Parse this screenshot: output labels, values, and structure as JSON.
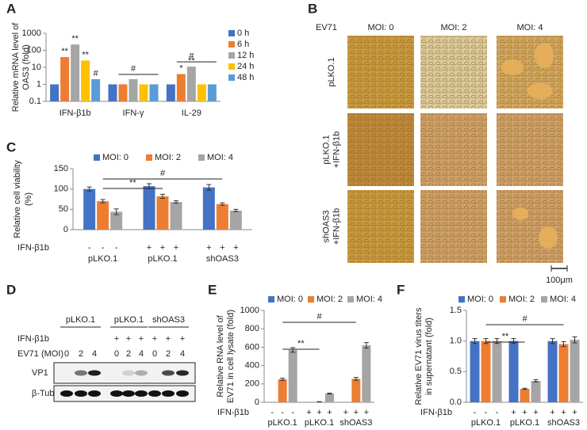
{
  "chart_data": [
    {
      "panel": "A",
      "type": "bar",
      "log_scale": true,
      "ylabel": [
        "Relative mRNA level of",
        "OAS3 (fold)"
      ],
      "categories": [
        "IFN-β1b",
        "IFN-γ",
        "IL-29"
      ],
      "series": [
        {
          "name": "0 h",
          "color": "#4472c4",
          "values": [
            1,
            1,
            1
          ]
        },
        {
          "name": "6 h",
          "color": "#ed7d31",
          "values": [
            40,
            1,
            4
          ],
          "value_annotations": [
            "**",
            null,
            "*"
          ]
        },
        {
          "name": "12 h",
          "color": "#a5a5a5",
          "values": [
            220,
            2,
            11
          ],
          "value_annotations": [
            "**",
            null,
            "**"
          ]
        },
        {
          "name": "24 h",
          "color": "#ffc000",
          "values": [
            25,
            1,
            1
          ],
          "value_annotations": [
            "**",
            null,
            null
          ]
        },
        {
          "name": "48 h",
          "color": "#5b9bd5",
          "values": [
            2,
            1,
            1
          ],
          "value_annotations": [
            "#",
            null,
            null
          ]
        }
      ],
      "group_annotations": [
        null,
        "#",
        "#"
      ],
      "ylim": [
        0.1,
        1000
      ],
      "yticks": [
        0.1,
        1,
        10,
        100,
        1000
      ],
      "legend": "right"
    },
    {
      "panel": "C",
      "type": "bar",
      "ylabel": [
        "Relative cell viability",
        "(%)"
      ],
      "categories": [
        "pLKO.1",
        "pLKO.1",
        "shOAS3"
      ],
      "series": [
        {
          "name": "MOI: 0",
          "color": "#4472c4",
          "values": [
            100,
            107,
            104
          ],
          "errors": [
            5,
            6,
            7
          ]
        },
        {
          "name": "MOI: 2",
          "color": "#ed7d31",
          "values": [
            70,
            82,
            63
          ],
          "errors": [
            4,
            5,
            3
          ]
        },
        {
          "name": "MOI: 4",
          "color": "#a5a5a5",
          "values": [
            44,
            68,
            47
          ],
          "errors": [
            7,
            3,
            3
          ]
        }
      ],
      "treatment_label": "IFN-β1b",
      "treatment_signs": [
        "-",
        "-",
        "-",
        "+",
        "+",
        "+",
        "+",
        "+",
        "+"
      ],
      "comparisons": [
        "**",
        "#"
      ],
      "ylim": [
        0,
        150
      ],
      "yticks": [
        0,
        50,
        100,
        150
      ],
      "legend": "top"
    },
    {
      "panel": "E",
      "type": "bar",
      "ylabel": [
        "Relative RNA level of",
        "EV71 in cell lysate (fold)"
      ],
      "categories": [
        "pLKO.1",
        "pLKO.1",
        "shOAS3"
      ],
      "series": [
        {
          "name": "MOI: 0",
          "color": "#4472c4",
          "values": [
            1,
            1,
            1
          ]
        },
        {
          "name": "MOI: 2",
          "color": "#ed7d31",
          "values": [
            250,
            5,
            255
          ],
          "errors": [
            12,
            2,
            15
          ]
        },
        {
          "name": "MOI: 4",
          "color": "#a5a5a5",
          "values": [
            570,
            95,
            620
          ],
          "errors": [
            25,
            5,
            30
          ]
        }
      ],
      "treatment_label": "IFN-β1b",
      "treatment_signs": [
        "-",
        "-",
        "-",
        "+",
        "+",
        "+",
        "+",
        "+",
        "+"
      ],
      "comparisons": [
        "**",
        "#"
      ],
      "ylim": [
        0,
        1000
      ],
      "yticks": [
        0,
        200,
        400,
        600,
        800,
        1000
      ],
      "legend": "top"
    },
    {
      "panel": "F",
      "type": "bar",
      "ylabel": [
        "Relative EV71 virus titers",
        "in supernatant (fold)"
      ],
      "categories": [
        "pLKO.1",
        "pLKO.1",
        "shOAS3"
      ],
      "series": [
        {
          "name": "MOI: 0",
          "color": "#4472c4",
          "values": [
            1,
            1,
            1
          ],
          "errors": [
            0.04,
            0.04,
            0.04
          ]
        },
        {
          "name": "MOI: 2",
          "color": "#ed7d31",
          "values": [
            1,
            0.22,
            0.95
          ],
          "errors": [
            0.04,
            0.01,
            0.04
          ]
        },
        {
          "name": "MOI: 4",
          "color": "#a5a5a5",
          "values": [
            1,
            0.35,
            1.02
          ],
          "errors": [
            0.04,
            0.02,
            0.05
          ]
        }
      ],
      "treatment_label": "IFN-β1b",
      "treatment_signs": [
        "-",
        "-",
        "-",
        "+",
        "+",
        "+",
        "+",
        "+",
        "+"
      ],
      "comparisons": [
        "**",
        "#"
      ],
      "ylim": [
        0,
        1.5
      ],
      "yticks": [
        {
          "value": 0,
          "label": "0.0"
        },
        0.5,
        {
          "value": 1,
          "label": "1.0"
        },
        1.5
      ],
      "legend": "top"
    }
  ],
  "micrographs": {
    "panel": "B",
    "header": "EV71",
    "columns": [
      "MOI: 0",
      "MOI: 2",
      "MOI: 4"
    ],
    "rows": [
      [
        "pLKO.1"
      ],
      [
        "pLKO.1",
        "+IFN-β1b"
      ],
      [
        "shOAS3",
        "+IFN-β1b"
      ]
    ],
    "scale_bar": "100μm"
  },
  "western_blot": {
    "panel": "D",
    "groups": [
      "pLKO.1",
      "pLKO.1",
      "shOAS3"
    ],
    "treatment_label": "IFN-β1b",
    "treatment_signs": [
      null,
      null,
      null,
      "+",
      "+",
      "+",
      "+",
      "+",
      "+"
    ],
    "moi_label": "EV71 (MOI)",
    "moi": [
      0,
      2,
      4,
      0,
      2,
      4,
      0,
      2,
      4
    ],
    "bands": [
      "VP1",
      "β-Tubulin"
    ]
  }
}
